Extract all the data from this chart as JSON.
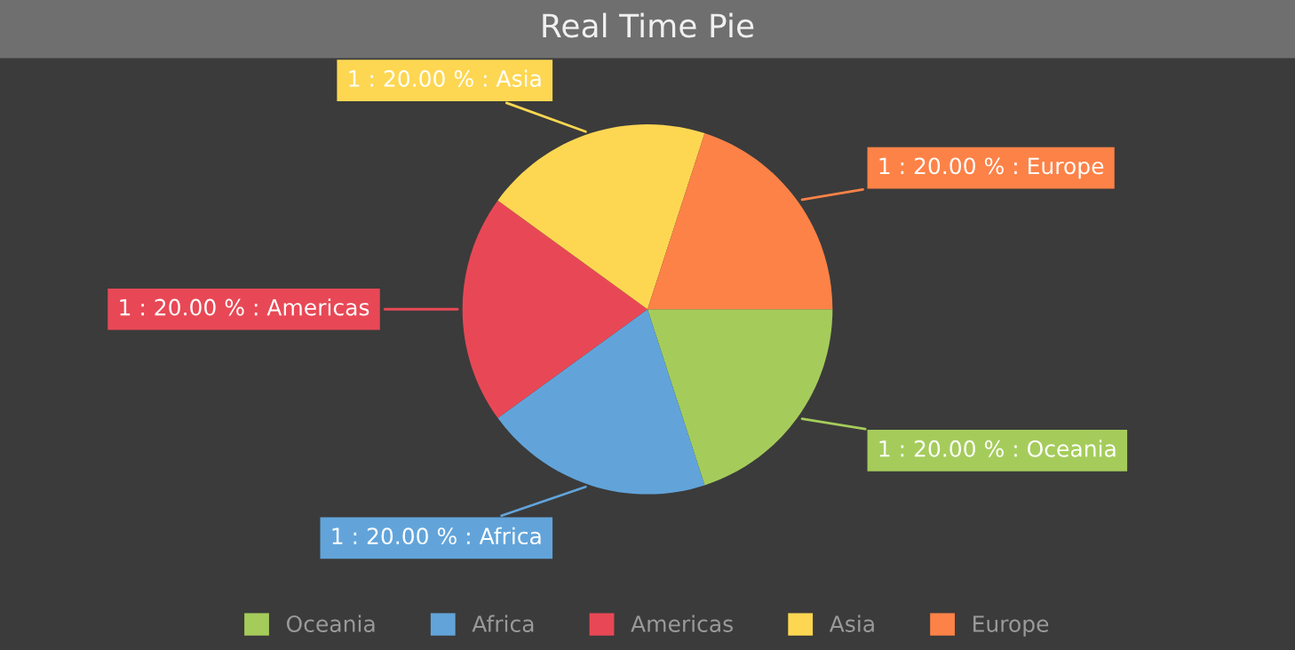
{
  "chart_data": {
    "type": "pie",
    "title": "Real Time Pie",
    "categories": [
      "Oceania",
      "Africa",
      "Americas",
      "Asia",
      "Europe"
    ],
    "values": [
      1,
      1,
      1,
      1,
      1
    ],
    "colors": [
      "#a5cc5b",
      "#62a4da",
      "#e84855",
      "#fdd752",
      "#fd8247"
    ],
    "value_labels": [
      "1 : 20.00 % : Oceania",
      "1 : 20.00 % : Africa",
      "1 : 20.00 % : Americas",
      "1 : 20.00 % : Asia",
      "1 : 20.00 % : Europe"
    ],
    "legend": "bottom"
  }
}
